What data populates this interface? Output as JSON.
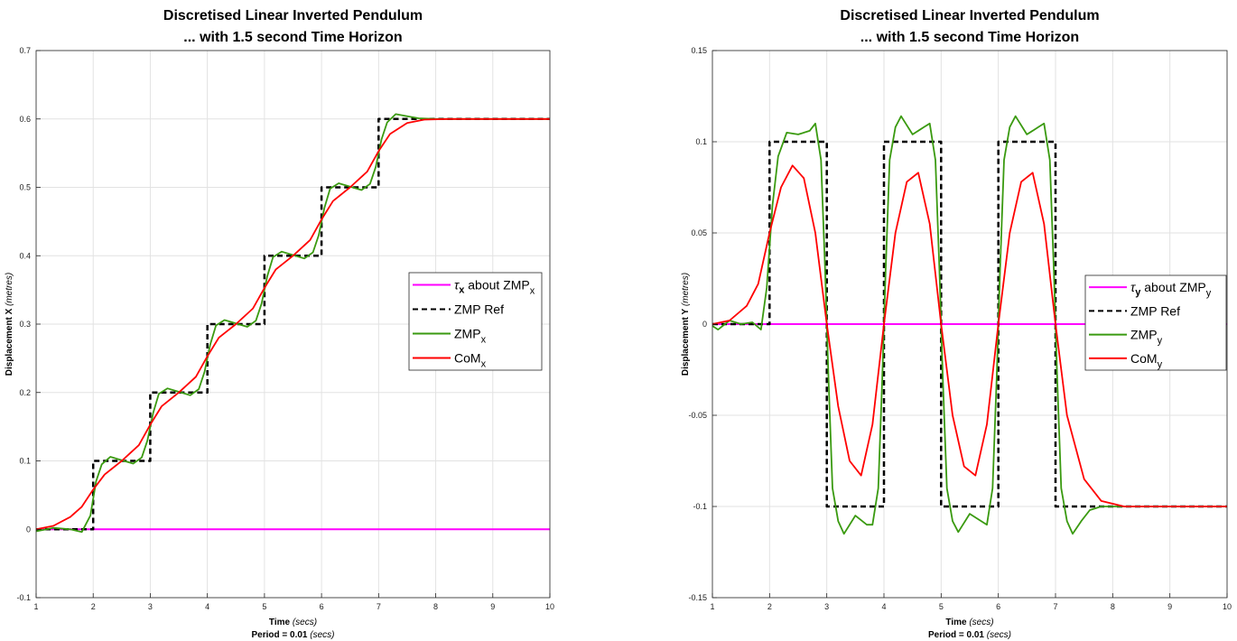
{
  "chart_data": [
    {
      "type": "line",
      "title": [
        "Discretised Linear Inverted Pendulum",
        "... with 1.5 second Time Horizon"
      ],
      "xlabel": {
        "bold": "Time",
        "rest": " (secs)"
      },
      "xlabel2": {
        "bold": "Period = 0.01",
        "rest": " (secs)"
      },
      "ylabel": {
        "bold": "Displacement X",
        "rest": " (metres)"
      },
      "xlim": [
        1,
        10
      ],
      "ylim": [
        -0.1,
        0.7
      ],
      "xticks": [
        1,
        2,
        3,
        4,
        5,
        6,
        7,
        8,
        9,
        10
      ],
      "yticks": [
        -0.1,
        0,
        0.1,
        0.2,
        0.3,
        0.4,
        0.5,
        0.6,
        0.7
      ],
      "ytick_labels": [
        "-0.1",
        "0",
        "0.1",
        "0.2",
        "0.3",
        "0.4",
        "0.5",
        "0.6",
        "0.7"
      ],
      "grid": true,
      "legend_position": "right",
      "legend": [
        {
          "name": "τx about ZMPx",
          "main": "τ",
          "sub1": "x",
          "mid": " about ZMP",
          "sub2": "x",
          "color": "#ff00ff",
          "dash": ""
        },
        {
          "name": "ZMP Ref",
          "main": "ZMP Ref",
          "color": "#000000",
          "dash": "6,4"
        },
        {
          "name": "ZMPx",
          "main": "ZMP",
          "sub2": "x",
          "color": "#3a9a10",
          "dash": ""
        },
        {
          "name": "CoMx",
          "main": "CoM",
          "sub2": "x",
          "color": "#ff0000",
          "dash": ""
        }
      ],
      "series": [
        {
          "name": "τx about ZMPx",
          "color": "#ff00ff",
          "dash": "",
          "width": 2,
          "x": [
            1,
            10
          ],
          "y": [
            0,
            0
          ]
        },
        {
          "name": "ZMP Ref",
          "color": "#000000",
          "dash": "6,4",
          "width": 2.5,
          "x": [
            1,
            2,
            2,
            3,
            3,
            4,
            4,
            5,
            5,
            6,
            6,
            7,
            7,
            10
          ],
          "y": [
            0,
            0,
            0.1,
            0.1,
            0.2,
            0.2,
            0.3,
            0.3,
            0.4,
            0.4,
            0.5,
            0.5,
            0.6,
            0.6
          ]
        },
        {
          "name": "ZMPx",
          "color": "#3a9a10",
          "dash": "",
          "width": 1.8,
          "x": [
            1,
            1.3,
            1.6,
            1.8,
            1.95,
            2.05,
            2.15,
            2.3,
            2.5,
            2.7,
            2.85,
            2.95,
            3.05,
            3.15,
            3.3,
            3.5,
            3.7,
            3.85,
            3.95,
            4.05,
            4.15,
            4.3,
            4.5,
            4.7,
            4.85,
            4.95,
            5.05,
            5.15,
            5.3,
            5.5,
            5.7,
            5.85,
            5.95,
            6.05,
            6.15,
            6.3,
            6.5,
            6.7,
            6.85,
            6.95,
            7.05,
            7.15,
            7.3,
            7.5,
            7.7,
            8,
            10
          ],
          "y": [
            -0.003,
            0.002,
            0.0,
            -0.004,
            0.02,
            0.07,
            0.095,
            0.106,
            0.101,
            0.096,
            0.105,
            0.13,
            0.17,
            0.198,
            0.206,
            0.201,
            0.196,
            0.205,
            0.23,
            0.27,
            0.298,
            0.306,
            0.301,
            0.296,
            0.305,
            0.33,
            0.37,
            0.398,
            0.406,
            0.401,
            0.396,
            0.405,
            0.43,
            0.47,
            0.498,
            0.506,
            0.501,
            0.496,
            0.505,
            0.53,
            0.57,
            0.595,
            0.607,
            0.604,
            0.601,
            0.6,
            0.6
          ]
        },
        {
          "name": "CoMx",
          "color": "#ff0000",
          "dash": "",
          "width": 1.8,
          "x": [
            1,
            1.3,
            1.6,
            1.8,
            2.0,
            2.2,
            2.5,
            2.8,
            3.0,
            3.2,
            3.5,
            3.8,
            4.0,
            4.2,
            4.5,
            4.8,
            5.0,
            5.2,
            5.5,
            5.8,
            6.0,
            6.2,
            6.5,
            6.8,
            7.0,
            7.2,
            7.5,
            7.8,
            8.2,
            10
          ],
          "y": [
            0.0,
            0.005,
            0.018,
            0.033,
            0.058,
            0.08,
            0.1,
            0.123,
            0.153,
            0.18,
            0.2,
            0.223,
            0.253,
            0.28,
            0.3,
            0.323,
            0.353,
            0.38,
            0.4,
            0.423,
            0.453,
            0.48,
            0.5,
            0.523,
            0.553,
            0.578,
            0.594,
            0.599,
            0.6,
            0.6
          ]
        }
      ]
    },
    {
      "type": "line",
      "title": [
        "Discretised Linear Inverted Pendulum",
        "... with 1.5 second Time Horizon"
      ],
      "xlabel": {
        "bold": "Time",
        "rest": " (secs)"
      },
      "xlabel2": {
        "bold": "Period = 0.01",
        "rest": " (secs)"
      },
      "ylabel": {
        "bold": "Displacement Y",
        "rest": " (metres)"
      },
      "xlim": [
        1,
        10
      ],
      "ylim": [
        -0.15,
        0.15
      ],
      "xticks": [
        1,
        2,
        3,
        4,
        5,
        6,
        7,
        8,
        9,
        10
      ],
      "yticks": [
        -0.15,
        -0.1,
        -0.05,
        0,
        0.05,
        0.1,
        0.15
      ],
      "ytick_labels": [
        "-0.15",
        "-0.1",
        "-0.05",
        "0",
        "0.05",
        "0.1",
        "0.15"
      ],
      "grid": true,
      "legend_position": "right",
      "legend": [
        {
          "name": "τy about ZMPy",
          "main": "τ",
          "sub1": "y",
          "mid": " about ZMP",
          "sub2": "y",
          "color": "#ff00ff",
          "dash": ""
        },
        {
          "name": "ZMP Ref",
          "main": "ZMP Ref",
          "color": "#000000",
          "dash": "6,4"
        },
        {
          "name": "ZMPy",
          "main": "ZMP",
          "sub2": "y",
          "color": "#3a9a10",
          "dash": ""
        },
        {
          "name": "CoMy",
          "main": "CoM",
          "sub2": "y",
          "color": "#ff0000",
          "dash": ""
        }
      ],
      "series": [
        {
          "name": "τy about ZMPy",
          "color": "#ff00ff",
          "dash": "",
          "width": 2,
          "x": [
            1,
            10
          ],
          "y": [
            0,
            0
          ]
        },
        {
          "name": "ZMP Ref",
          "color": "#000000",
          "dash": "6,4",
          "width": 2.5,
          "x": [
            1,
            2,
            2,
            3,
            3,
            4,
            4,
            5,
            5,
            6,
            6,
            7,
            7,
            10
          ],
          "y": [
            0,
            0,
            0.1,
            0.1,
            -0.1,
            -0.1,
            0.1,
            0.1,
            -0.1,
            -0.1,
            0.1,
            0.1,
            -0.1,
            -0.1
          ]
        },
        {
          "name": "ZMPy",
          "color": "#3a9a10",
          "dash": "",
          "width": 1.8,
          "x": [
            1,
            1.1,
            1.3,
            1.5,
            1.7,
            1.85,
            1.95,
            2.05,
            2.15,
            2.3,
            2.5,
            2.7,
            2.8,
            2.9,
            2.97,
            3.03,
            3.1,
            3.2,
            3.3,
            3.5,
            3.7,
            3.8,
            3.9,
            3.97,
            4.03,
            4.1,
            4.2,
            4.3,
            4.5,
            4.7,
            4.8,
            4.9,
            4.97,
            5.03,
            5.1,
            5.2,
            5.3,
            5.5,
            5.7,
            5.8,
            5.9,
            5.97,
            6.03,
            6.1,
            6.2,
            6.3,
            6.5,
            6.7,
            6.8,
            6.9,
            6.97,
            7.03,
            7.1,
            7.2,
            7.3,
            7.45,
            7.6,
            7.8,
            8.0,
            10
          ],
          "y": [
            -0.001,
            -0.003,
            0.002,
            0.0,
            0.001,
            -0.003,
            0.02,
            0.065,
            0.092,
            0.105,
            0.104,
            0.106,
            0.11,
            0.09,
            0.03,
            -0.03,
            -0.09,
            -0.108,
            -0.115,
            -0.105,
            -0.11,
            -0.11,
            -0.09,
            -0.03,
            0.03,
            0.09,
            0.108,
            0.114,
            0.104,
            0.108,
            0.11,
            0.09,
            0.03,
            -0.03,
            -0.09,
            -0.108,
            -0.114,
            -0.104,
            -0.108,
            -0.11,
            -0.09,
            -0.03,
            0.03,
            0.09,
            0.108,
            0.114,
            0.104,
            0.108,
            0.11,
            0.09,
            0.03,
            -0.03,
            -0.09,
            -0.108,
            -0.115,
            -0.108,
            -0.102,
            -0.1,
            -0.1,
            -0.1
          ]
        },
        {
          "name": "CoMy",
          "color": "#ff0000",
          "dash": "",
          "width": 1.8,
          "x": [
            1,
            1.3,
            1.6,
            1.8,
            2.0,
            2.2,
            2.4,
            2.6,
            2.8,
            3.0,
            3.2,
            3.4,
            3.6,
            3.8,
            4.0,
            4.2,
            4.4,
            4.6,
            4.8,
            5.0,
            5.2,
            5.4,
            5.6,
            5.8,
            6.0,
            6.2,
            6.4,
            6.6,
            6.8,
            7.0,
            7.2,
            7.5,
            7.8,
            8.2,
            10
          ],
          "y": [
            0.0,
            0.002,
            0.01,
            0.022,
            0.05,
            0.075,
            0.087,
            0.08,
            0.05,
            0.0,
            -0.045,
            -0.075,
            -0.083,
            -0.055,
            0.0,
            0.05,
            0.078,
            0.083,
            0.055,
            0.0,
            -0.05,
            -0.078,
            -0.083,
            -0.055,
            0.0,
            0.05,
            0.078,
            0.083,
            0.055,
            0.0,
            -0.05,
            -0.085,
            -0.097,
            -0.1,
            -0.1
          ]
        }
      ]
    }
  ]
}
